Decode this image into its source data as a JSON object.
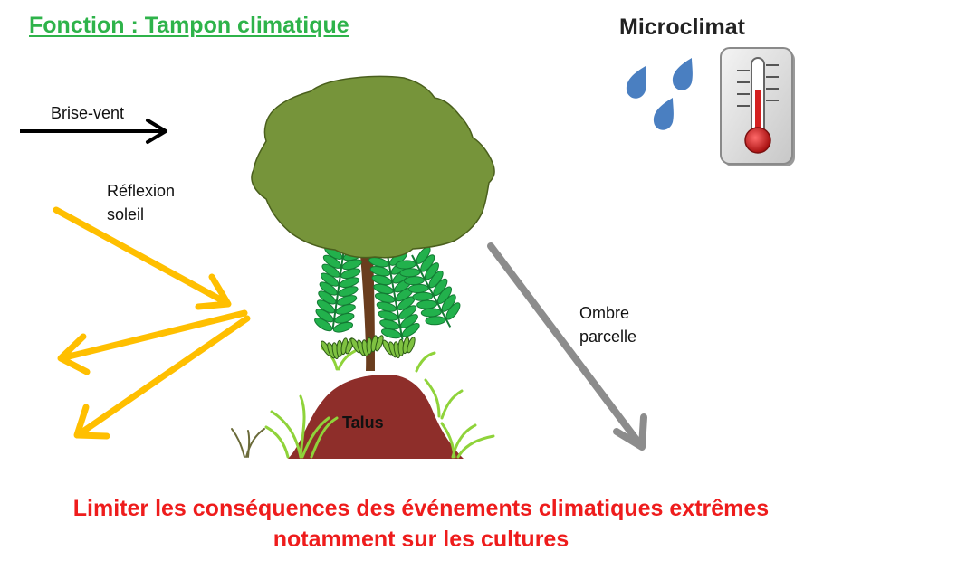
{
  "title": "Fonction : Tampon climatique",
  "microclimat": {
    "title": "Microclimat",
    "icons": [
      "water-drop-icon",
      "thermometer-icon"
    ]
  },
  "labels": {
    "brise_vent": "Brise-vent",
    "reflexion_line1": "Réflexion",
    "reflexion_line2": "soleil",
    "ombre_line1": "Ombre",
    "ombre_line2": "parcelle",
    "talus": "Talus"
  },
  "conclusion": {
    "line1": "Limiter les conséquences des événements climatiques extrêmes",
    "line2": "notamment sur les cultures"
  },
  "colors": {
    "title": "#2eb34a",
    "conclusion": "#ee1c1c",
    "wind_arrow": "#000000",
    "sun_arrows": "#ffbf00",
    "shade_arrow": "#8c8c8c",
    "canopy": "#76943a",
    "canopy_outline": "#4a5f1d",
    "fern": "#22b14c",
    "talus": "#8e2e2a",
    "grass": "#8fd33a",
    "drops": "#4a7fc1",
    "thermometer_red": "#d42020"
  }
}
